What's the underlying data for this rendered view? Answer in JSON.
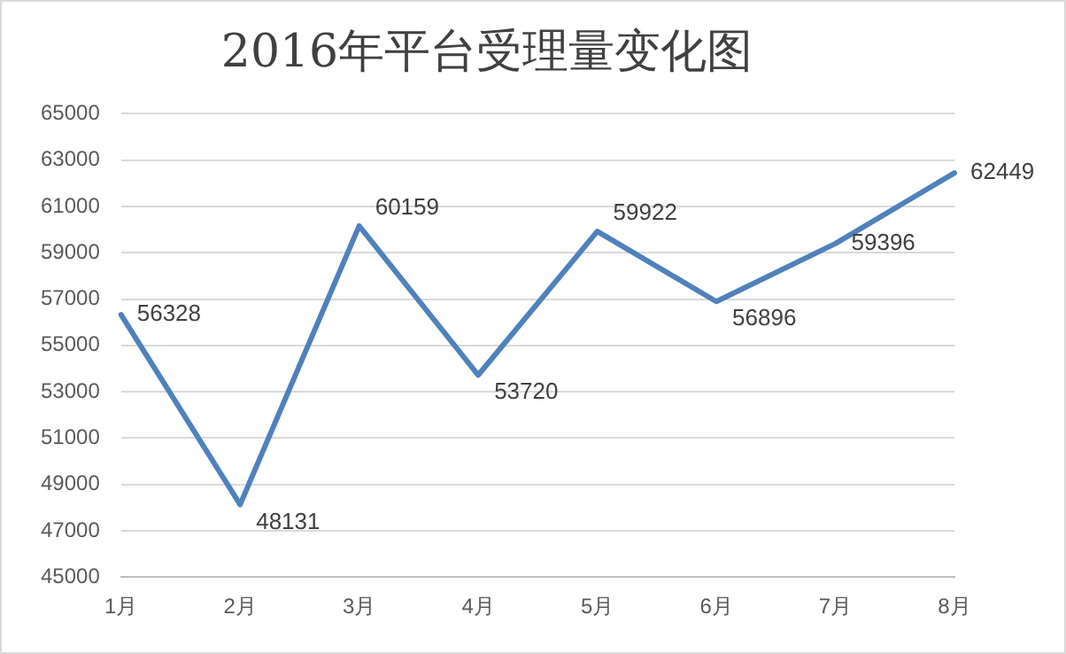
{
  "chart_data": {
    "type": "line",
    "title": "2016年平台受理量变化图",
    "categories": [
      "1月",
      "2月",
      "3月",
      "4月",
      "5月",
      "6月",
      "7月",
      "8月"
    ],
    "series": [
      {
        "color": "#4f81bd",
        "values": [
          56328,
          48131,
          60159,
          53720,
          59922,
          56896,
          59396,
          62449
        ]
      }
    ],
    "ylim": [
      45000,
      65000
    ],
    "yticks": [
      45000,
      47000,
      49000,
      51000,
      53000,
      55000,
      57000,
      59000,
      61000,
      63000,
      65000
    ],
    "grid": "y",
    "legend": false,
    "marker": "none",
    "line_style": "solid",
    "data_labels": true
  }
}
